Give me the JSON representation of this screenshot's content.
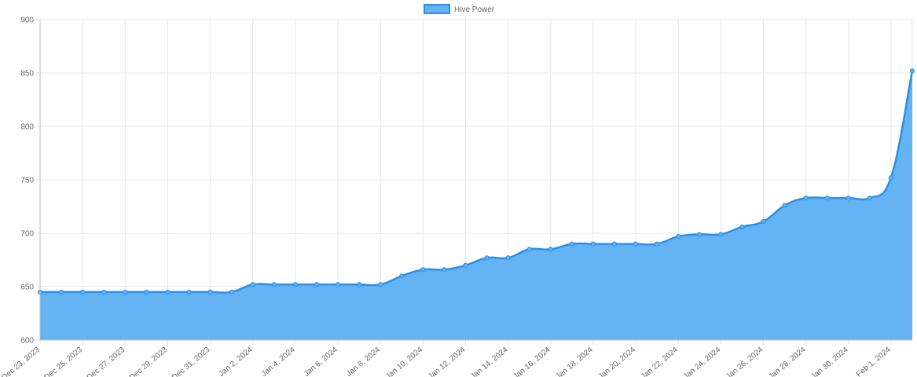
{
  "chart_data": {
    "type": "area",
    "title": "",
    "xlabel": "",
    "ylabel": "",
    "legend": {
      "position": "top-center"
    },
    "grid": true,
    "ylim": [
      600,
      900
    ],
    "yticks": [
      600,
      650,
      700,
      750,
      800,
      850,
      900
    ],
    "xtick_labels": [
      "Dec 23, 2023",
      "Dec 25, 2023",
      "Dec 27, 2023",
      "Dec 29, 2023",
      "Dec 31, 2023",
      "Jan 2, 2024",
      "Jan 4, 2024",
      "Jan 6, 2024",
      "Jan 8, 2024",
      "Jan 10, 2024",
      "Jan 12, 2024",
      "Jan 14, 2024",
      "Jan 16, 2024",
      "Jan 18, 2024",
      "Jan 20, 2024",
      "Jan 22, 2024",
      "Jan 24, 2024",
      "Jan 26, 2024",
      "Jan 28, 2024",
      "Jan 30, 2024",
      "Feb 1, 2024"
    ],
    "x": [
      "2023-12-23",
      "2023-12-24",
      "2023-12-25",
      "2023-12-26",
      "2023-12-27",
      "2023-12-28",
      "2023-12-29",
      "2023-12-30",
      "2023-12-31",
      "2024-01-01",
      "2024-01-02",
      "2024-01-03",
      "2024-01-04",
      "2024-01-05",
      "2024-01-06",
      "2024-01-07",
      "2024-01-08",
      "2024-01-09",
      "2024-01-10",
      "2024-01-11",
      "2024-01-12",
      "2024-01-13",
      "2024-01-14",
      "2024-01-15",
      "2024-01-16",
      "2024-01-17",
      "2024-01-18",
      "2024-01-19",
      "2024-01-20",
      "2024-01-21",
      "2024-01-22",
      "2024-01-23",
      "2024-01-24",
      "2024-01-25",
      "2024-01-26",
      "2024-01-27",
      "2024-01-28",
      "2024-01-29",
      "2024-01-30",
      "2024-01-31",
      "2024-02-01",
      "2024-02-02"
    ],
    "series": [
      {
        "name": "Hive Power",
        "fill_color": "#63b3f5",
        "line_color": "#2d8fe3",
        "values": [
          645,
          645,
          645,
          645,
          645,
          645,
          645,
          645,
          645,
          645,
          652,
          652,
          652,
          652,
          652,
          652,
          652,
          660,
          666,
          666,
          670,
          677,
          677,
          685,
          685,
          690,
          690,
          690,
          690,
          690,
          697,
          699,
          699,
          706,
          711,
          726,
          733,
          733,
          733,
          733,
          752,
          852
        ]
      }
    ]
  }
}
